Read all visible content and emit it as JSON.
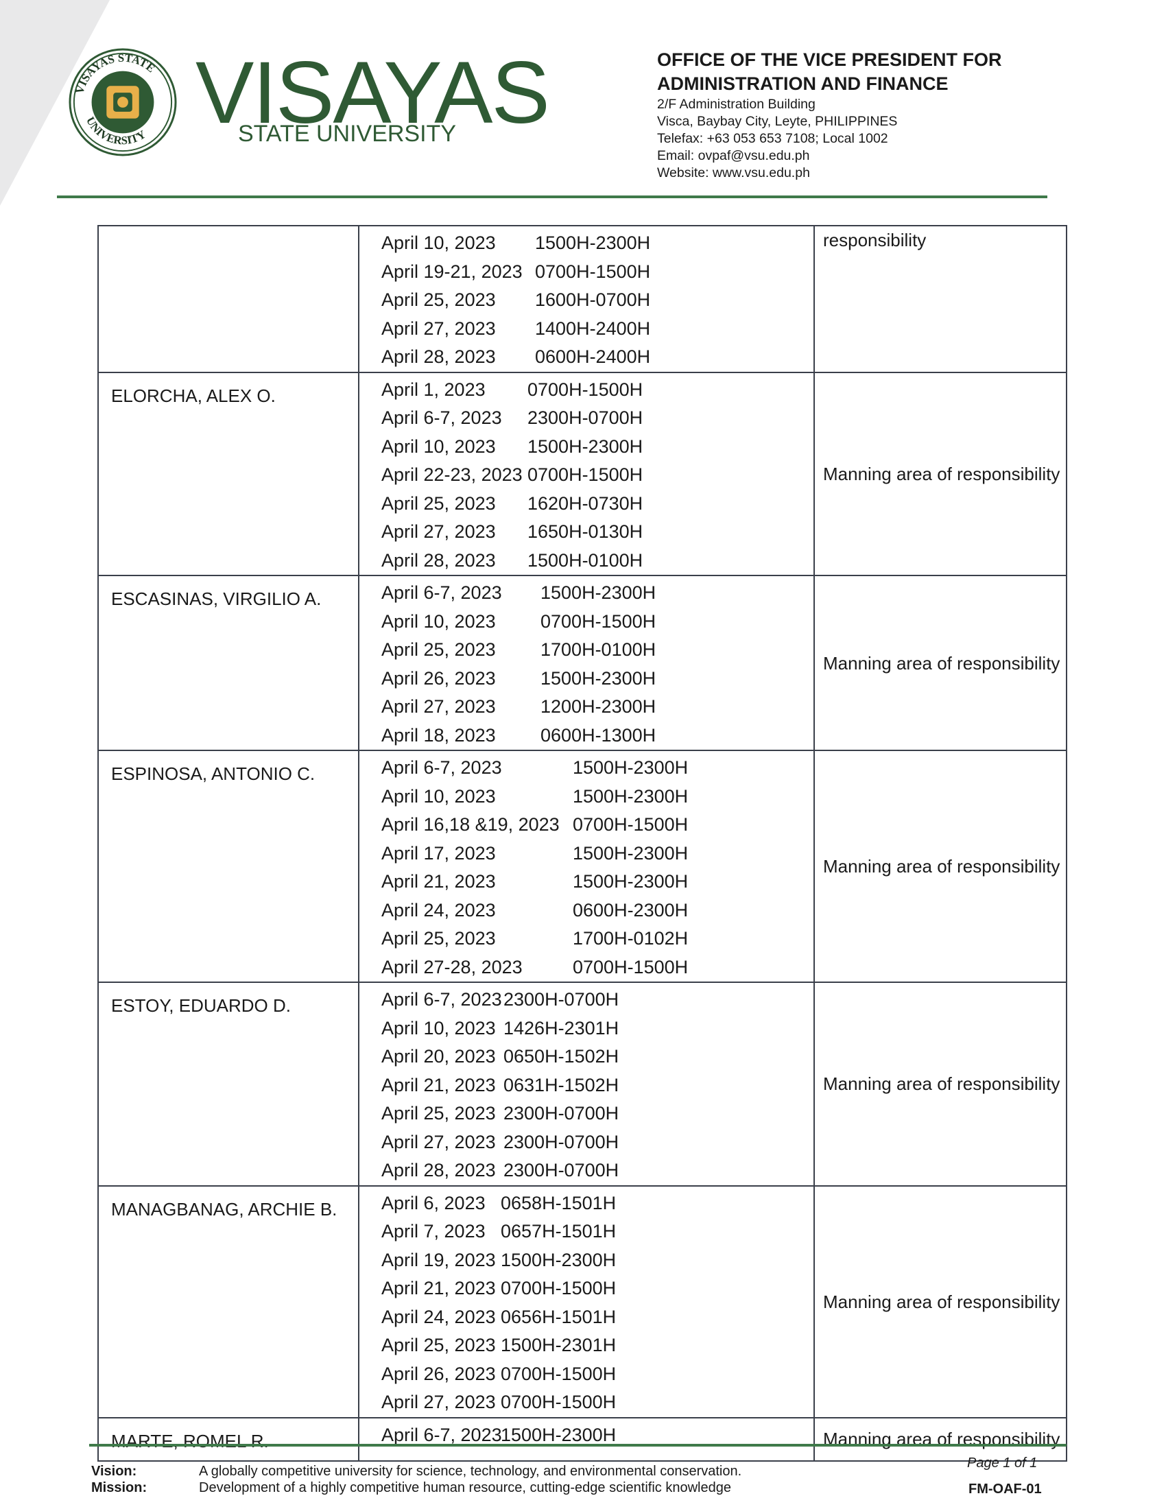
{
  "header": {
    "logo_seal_text": "VISAYAS STATE UNIVERSITY",
    "brand_name": "VISAYAS",
    "brand_sub": "STATE UNIVERSITY",
    "office_title_1": "OFFICE OF THE VICE PRESIDENT FOR",
    "office_title_2": "ADMINISTRATION AND FINANCE",
    "address_1": "2/F Administration Building",
    "address_2": "Visca, Baybay City, Leyte, PHILIPPINES",
    "telefax": "Telefax: +63 053 653 7108; Local 1002",
    "email": "Email: ovpaf@vsu.edu.ph",
    "website": "Website: www.vsu.edu.ph"
  },
  "colors": {
    "brand_green": "#2f5a34",
    "rule_green": "#3f7a4a",
    "seal_gold": "#e8b04a"
  },
  "table": {
    "rows": [
      {
        "name": "",
        "remark": "responsibility",
        "entries": [
          [
            "April 10, 2023",
            "1500H-2300H"
          ],
          [
            "April 19-21, 2023",
            "0700H-1500H"
          ],
          [
            "April 25, 2023",
            "1600H-0700H"
          ],
          [
            "April 27, 2023",
            "1400H-2400H"
          ],
          [
            "April 28, 2023",
            "0600H-2400H"
          ]
        ]
      },
      {
        "name": "ELORCHA, ALEX O.",
        "remark": "Manning area of responsibility",
        "entries": [
          [
            "April 1, 2023",
            "0700H-1500H"
          ],
          [
            "April 6-7, 2023",
            "2300H-0700H"
          ],
          [
            "April 10, 2023",
            "1500H-2300H"
          ],
          [
            "April 22-23, 2023",
            "0700H-1500H"
          ],
          [
            "April 25, 2023",
            "1620H-0730H"
          ],
          [
            "April 27, 2023",
            "1650H-0130H"
          ],
          [
            "April 28, 2023",
            "1500H-0100H"
          ]
        ]
      },
      {
        "name": "ESCASINAS, VIRGILIO A.",
        "remark": "Manning area of responsibility",
        "entries": [
          [
            "April 6-7, 2023",
            "1500H-2300H"
          ],
          [
            "April 10, 2023",
            "0700H-1500H"
          ],
          [
            "April 25, 2023",
            "1700H-0100H"
          ],
          [
            "April 26, 2023",
            "1500H-2300H"
          ],
          [
            "April 27, 2023",
            "1200H-2300H"
          ],
          [
            "April 18, 2023",
            "0600H-1300H"
          ]
        ]
      },
      {
        "name": "ESPINOSA, ANTONIO C.",
        "remark": "Manning area of responsibility",
        "entries": [
          [
            "April 6-7, 2023",
            "1500H-2300H"
          ],
          [
            "April 10, 2023",
            "1500H-2300H"
          ],
          [
            "April 16,18 &19, 2023",
            "0700H-1500H"
          ],
          [
            "April 17, 2023",
            "1500H-2300H"
          ],
          [
            "April 21, 2023",
            "1500H-2300H"
          ],
          [
            "April 24, 2023",
            "0600H-2300H"
          ],
          [
            "April 25, 2023",
            "1700H-0102H"
          ],
          [
            "April 27-28, 2023",
            "0700H-1500H"
          ]
        ]
      },
      {
        "name": "ESTOY, EDUARDO D.",
        "remark": "Manning area of responsibility",
        "entries": [
          [
            "April 6-7, 2023",
            "2300H-0700H"
          ],
          [
            "April 10, 2023",
            "1426H-2301H"
          ],
          [
            "April 20, 2023",
            "0650H-1502H"
          ],
          [
            "April 21, 2023",
            "0631H-1502H"
          ],
          [
            "April 25, 2023",
            "2300H-0700H"
          ],
          [
            "April 27, 2023",
            "2300H-0700H"
          ],
          [
            "April 28, 2023",
            "2300H-0700H"
          ]
        ]
      },
      {
        "name": "MANAGBANAG, ARCHIE B.",
        "remark": "Manning area of responsibility",
        "entries": [
          [
            "April 6, 2023",
            "0658H-1501H"
          ],
          [
            "April 7, 2023",
            "0657H-1501H"
          ],
          [
            "April 19, 2023",
            "1500H-2300H"
          ],
          [
            "April 21, 2023",
            "0700H-1500H"
          ],
          [
            "April 24, 2023",
            "0656H-1501H"
          ],
          [
            "April 25, 2023",
            "1500H-2301H"
          ],
          [
            "April 26, 2023",
            "0700H-1500H"
          ],
          [
            "April 27, 2023",
            "0700H-1500H"
          ]
        ]
      },
      {
        "name": "MARTE, ROMEL R.",
        "remark": "Manning area of responsibility",
        "entries": [
          [
            "April 6-7, 2023",
            "1500H-2300H"
          ]
        ]
      }
    ]
  },
  "footer": {
    "vision_label": "Vision:",
    "vision_text": "A globally competitive university for science, technology, and environmental conservation.",
    "mission_label": "Mission:",
    "mission_text": "Development of a highly competitive human resource, cutting-edge scientific knowledge",
    "page": "Page 1 of 1",
    "form_code": "FM-OAF-01"
  }
}
